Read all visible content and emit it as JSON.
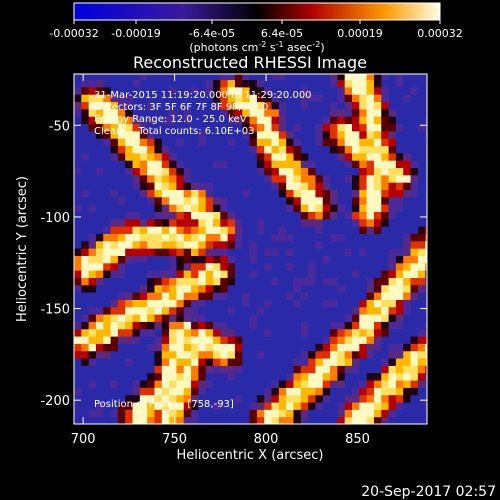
{
  "chart_data": {
    "type": "heatmap",
    "title": "Reconstructed RHESSI Image",
    "xlabel": "Heliocentric X (arcsec)",
    "ylabel": "Heliocentric Y (arcsec)",
    "xlim": [
      695,
      888
    ],
    "ylim": [
      -213,
      -22
    ],
    "x_ticks": [
      700,
      750,
      800,
      850
    ],
    "y_ticks": [
      -50,
      -100,
      -150,
      -200
    ],
    "colorbar": {
      "ticks": [
        "-0.00032",
        "-0.00019",
        "-6.4e-05",
        "6.4e-05",
        "0.00019",
        "0.00032"
      ],
      "values": [
        -0.00032,
        -0.00019,
        -6.4e-05,
        6.4e-05,
        0.00019,
        0.00032
      ],
      "unit": "(photons cm⁻² s⁻¹ asec⁻²)"
    },
    "annotations": [
      "31-Mar-2015 11:19:20.000 to 11:29:20.000",
      "Detectors: 3F 5F 6F 7F 8F 9F, Att 0",
      "Energy Range: 12.0 - 25.0 keV",
      "Clean     Total counts: 6.10E+03"
    ],
    "peak_label": "Position of Peak = [758,-93]",
    "peak": [
      758,
      -93
    ],
    "bright_ridges": [
      {
        "points": [
          [
            705,
            -40
          ],
          [
            725,
            -60
          ],
          [
            745,
            -88
          ],
          [
            760,
            -98
          ],
          [
            772,
            -110
          ]
        ]
      },
      {
        "points": [
          [
            700,
            -130
          ],
          [
            720,
            -115
          ],
          [
            740,
            -112
          ],
          [
            760,
            -115
          ]
        ]
      },
      {
        "points": [
          [
            700,
            -170
          ],
          [
            720,
            -158
          ],
          [
            745,
            -145
          ],
          [
            770,
            -132
          ]
        ]
      },
      {
        "points": [
          [
            745,
            -212
          ],
          [
            758,
            -178
          ],
          [
            762,
            -168
          ],
          [
            775,
            -175
          ]
        ]
      },
      {
        "points": [
          [
            845,
            -20
          ],
          [
            855,
            -45
          ],
          [
            860,
            -75
          ],
          [
            855,
            -100
          ]
        ]
      },
      {
        "points": [
          [
            800,
            -212
          ],
          [
            820,
            -195
          ],
          [
            850,
            -165
          ],
          [
            870,
            -140
          ],
          [
            888,
            -118
          ]
        ]
      },
      {
        "points": [
          [
            848,
            -212
          ],
          [
            862,
            -198
          ],
          [
            875,
            -185
          ],
          [
            888,
            -175
          ]
        ]
      },
      {
        "points": [
          [
            840,
            -55
          ],
          [
            855,
            -68
          ],
          [
            870,
            -80
          ]
        ]
      },
      {
        "points": [
          [
            780,
            -35
          ],
          [
            795,
            -45
          ],
          [
            805,
            -70
          ],
          [
            825,
            -95
          ]
        ]
      },
      {
        "points": [
          [
            728,
            -210
          ],
          [
            745,
            -195
          ],
          [
            752,
            -165
          ]
        ]
      }
    ]
  },
  "footer": {
    "timestamp": "20-Sep-2017 02:57"
  }
}
